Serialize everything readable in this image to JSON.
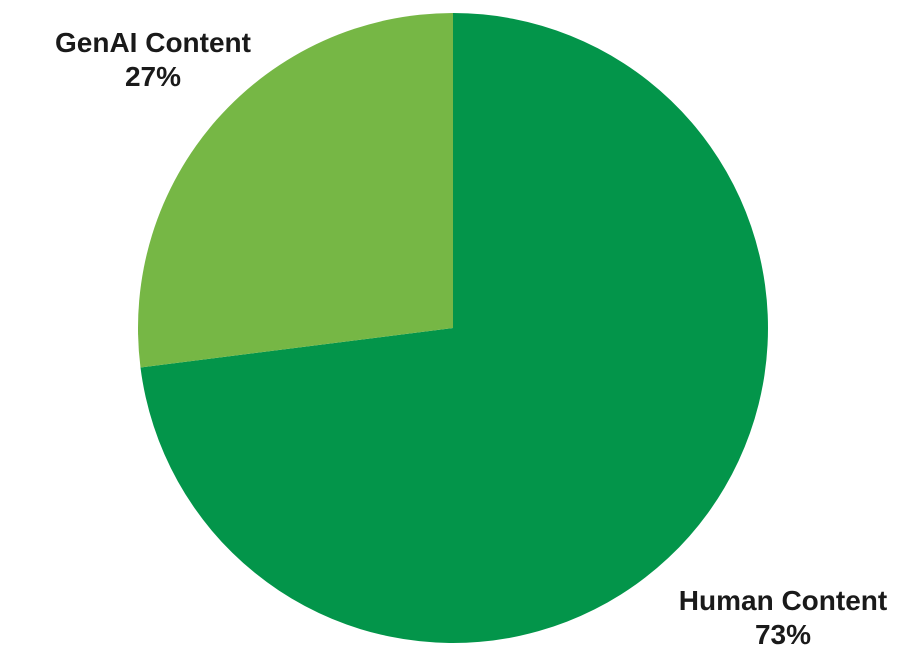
{
  "chart_data": {
    "type": "pie",
    "title": "",
    "slices": [
      {
        "label": "Human Content",
        "value": 73,
        "value_label": "73%",
        "color": "#03954a"
      },
      {
        "label": "GenAI Content",
        "value": 27,
        "value_label": "27%",
        "color": "#76b745"
      }
    ],
    "start_angle": "12 o'clock",
    "direction": "clockwise",
    "legend": "none"
  }
}
